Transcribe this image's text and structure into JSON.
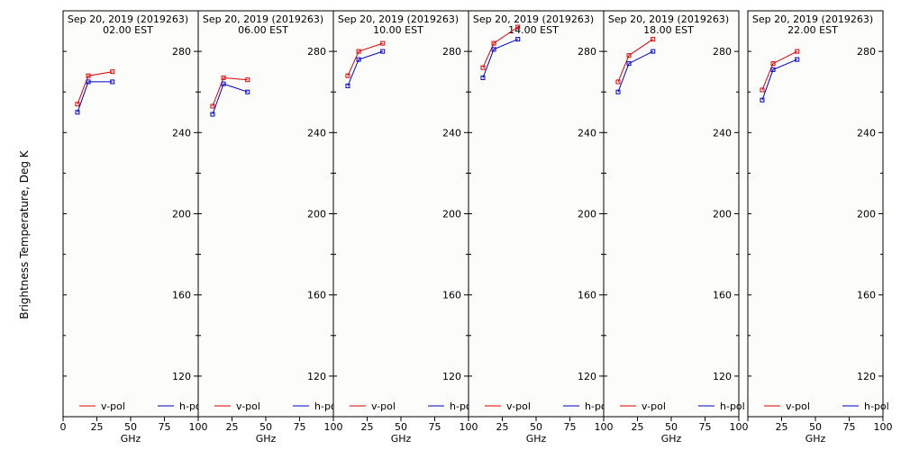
{
  "chart_data": {
    "type": "line",
    "ylabel": "Brightness Temperature, Deg K",
    "ylim": [
      100,
      300
    ],
    "yticks": [
      120,
      160,
      200,
      240,
      280
    ],
    "legend_placement": "bottom",
    "grid": false,
    "legend": [
      {
        "name": "v-pol",
        "color": "#dd0000"
      },
      {
        "name": "h-pol",
        "color": "#0000cc"
      }
    ],
    "panels": [
      {
        "title": "Sep 20, 2019 (2019263)",
        "subtitle": "02.00 EST",
        "xlabel": "GHz",
        "xlim": [
          0,
          100
        ],
        "xticks": [
          0,
          25,
          50,
          75,
          100
        ],
        "xtick_labels": [
          "0",
          "25",
          "50",
          "75",
          "100"
        ],
        "series": [
          {
            "name": "v-pol",
            "x": [
              10.65,
              18.7,
              36.5
            ],
            "y": [
              254,
              268,
              270
            ]
          },
          {
            "name": "h-pol",
            "x": [
              10.65,
              18.7,
              36.5
            ],
            "y": [
              250,
              265,
              265
            ]
          }
        ]
      },
      {
        "title": "Sep 20, 2019 (2019263)",
        "subtitle": "06.00 EST",
        "xlabel": "GHz",
        "xlim": [
          0,
          100
        ],
        "xticks": [
          0,
          25,
          50,
          75,
          100
        ],
        "xtick_labels": [
          "",
          "25",
          "50",
          "75",
          "100"
        ],
        "series": [
          {
            "name": "v-pol",
            "x": [
              10.65,
              18.7,
              36.5
            ],
            "y": [
              253,
              267,
              266
            ]
          },
          {
            "name": "h-pol",
            "x": [
              10.65,
              18.7,
              36.5
            ],
            "y": [
              249,
              264,
              260
            ]
          }
        ]
      },
      {
        "title": "Sep 20, 2019 (2019263)",
        "subtitle": "10.00 EST",
        "xlabel": "GHz",
        "xlim": [
          0,
          100
        ],
        "xticks": [
          0,
          25,
          50,
          75,
          100
        ],
        "xtick_labels": [
          "",
          "25",
          "50",
          "75",
          "100"
        ],
        "series": [
          {
            "name": "v-pol",
            "x": [
              10.65,
              18.7,
              36.5
            ],
            "y": [
              268,
              280,
              284
            ]
          },
          {
            "name": "h-pol",
            "x": [
              10.65,
              18.7,
              36.5
            ],
            "y": [
              263,
              276,
              280
            ]
          }
        ]
      },
      {
        "title": "Sep 20, 2019 (2019263)",
        "subtitle": "14.00 EST",
        "xlabel": "GHz",
        "xlim": [
          0,
          100
        ],
        "xticks": [
          0,
          25,
          50,
          75,
          100
        ],
        "xtick_labels": [
          "",
          "25",
          "50",
          "75",
          "100"
        ],
        "series": [
          {
            "name": "v-pol",
            "x": [
              10.65,
              18.7,
              36.5
            ],
            "y": [
              272,
              284,
              292
            ]
          },
          {
            "name": "h-pol",
            "x": [
              10.65,
              18.7,
              36.5
            ],
            "y": [
              267,
              281,
              286
            ]
          }
        ]
      },
      {
        "title": "Sep 20, 2019 (2019263)",
        "subtitle": "18.00 EST",
        "xlabel": "GHz",
        "xlim": [
          0,
          100
        ],
        "xticks": [
          0,
          25,
          50,
          75,
          100
        ],
        "xtick_labels": [
          "",
          "25",
          "50",
          "75",
          "100"
        ],
        "series": [
          {
            "name": "v-pol",
            "x": [
              10.65,
              18.7,
              36.5
            ],
            "y": [
              265,
              278,
              286
            ]
          },
          {
            "name": "h-pol",
            "x": [
              10.65,
              18.7,
              36.5
            ],
            "y": [
              260,
              274,
              280
            ]
          }
        ]
      },
      {
        "title": "Sep 20, 2019 (2019263)",
        "subtitle": "22.00 EST",
        "xlabel": "GHz",
        "xlim": [
          0,
          100
        ],
        "xticks": [
          0,
          25,
          50,
          75,
          100
        ],
        "xtick_labels": [
          "",
          "25",
          "50",
          "75",
          "100"
        ],
        "series": [
          {
            "name": "v-pol",
            "x": [
              10.65,
              18.7,
              36.5
            ],
            "y": [
              261,
              274,
              280
            ]
          },
          {
            "name": "h-pol",
            "x": [
              10.65,
              18.7,
              36.5
            ],
            "y": [
              256,
              271,
              276
            ]
          }
        ]
      }
    ]
  }
}
